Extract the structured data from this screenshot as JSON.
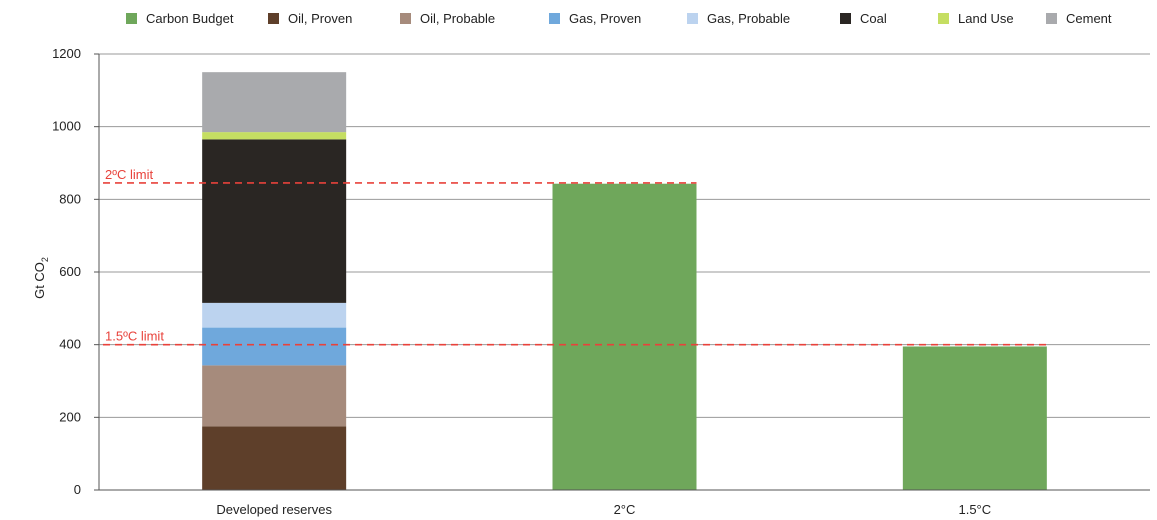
{
  "chart_data": {
    "type": "bar",
    "stacked": true,
    "categories": [
      "Developed reserves",
      "2°C",
      "1.5°C"
    ],
    "ylabel": "Gt CO",
    "ylabel_subscript": "2",
    "ylim": [
      0,
      1200
    ],
    "yticks": [
      0,
      200,
      400,
      600,
      800,
      1000,
      1200
    ],
    "grid": true,
    "legend_position": "top",
    "series": [
      {
        "name": "Carbon Budget",
        "color": "#6fa75b",
        "values": [
          0,
          843,
          395
        ]
      },
      {
        "name": "Oil, Proven",
        "color": "#5e3f2a",
        "values": [
          175,
          0,
          0
        ]
      },
      {
        "name": "Oil, Probable",
        "color": "#a68b7c",
        "values": [
          168,
          0,
          0
        ]
      },
      {
        "name": "Gas, Proven",
        "color": "#6fa8dc",
        "values": [
          104,
          0,
          0
        ]
      },
      {
        "name": "Gas, Probable",
        "color": "#bcd3ef",
        "values": [
          68,
          0,
          0
        ]
      },
      {
        "name": "Coal",
        "color": "#2a2623",
        "values": [
          450,
          0,
          0
        ]
      },
      {
        "name": "Land Use",
        "color": "#c5de62",
        "values": [
          20,
          0,
          0
        ]
      },
      {
        "name": "Cement",
        "color": "#a9aaad",
        "values": [
          165,
          0,
          0
        ]
      }
    ],
    "stack_order": [
      "Oil, Proven",
      "Oil, Probable",
      "Gas, Proven",
      "Gas, Probable",
      "Coal",
      "Land Use",
      "Cement",
      "Carbon Budget"
    ],
    "reference_lines": [
      {
        "label": "2ºC limit",
        "value": 845,
        "color": "#e8423b"
      },
      {
        "label": "1.5ºC limit",
        "value": 400,
        "color": "#e8423b"
      }
    ]
  }
}
